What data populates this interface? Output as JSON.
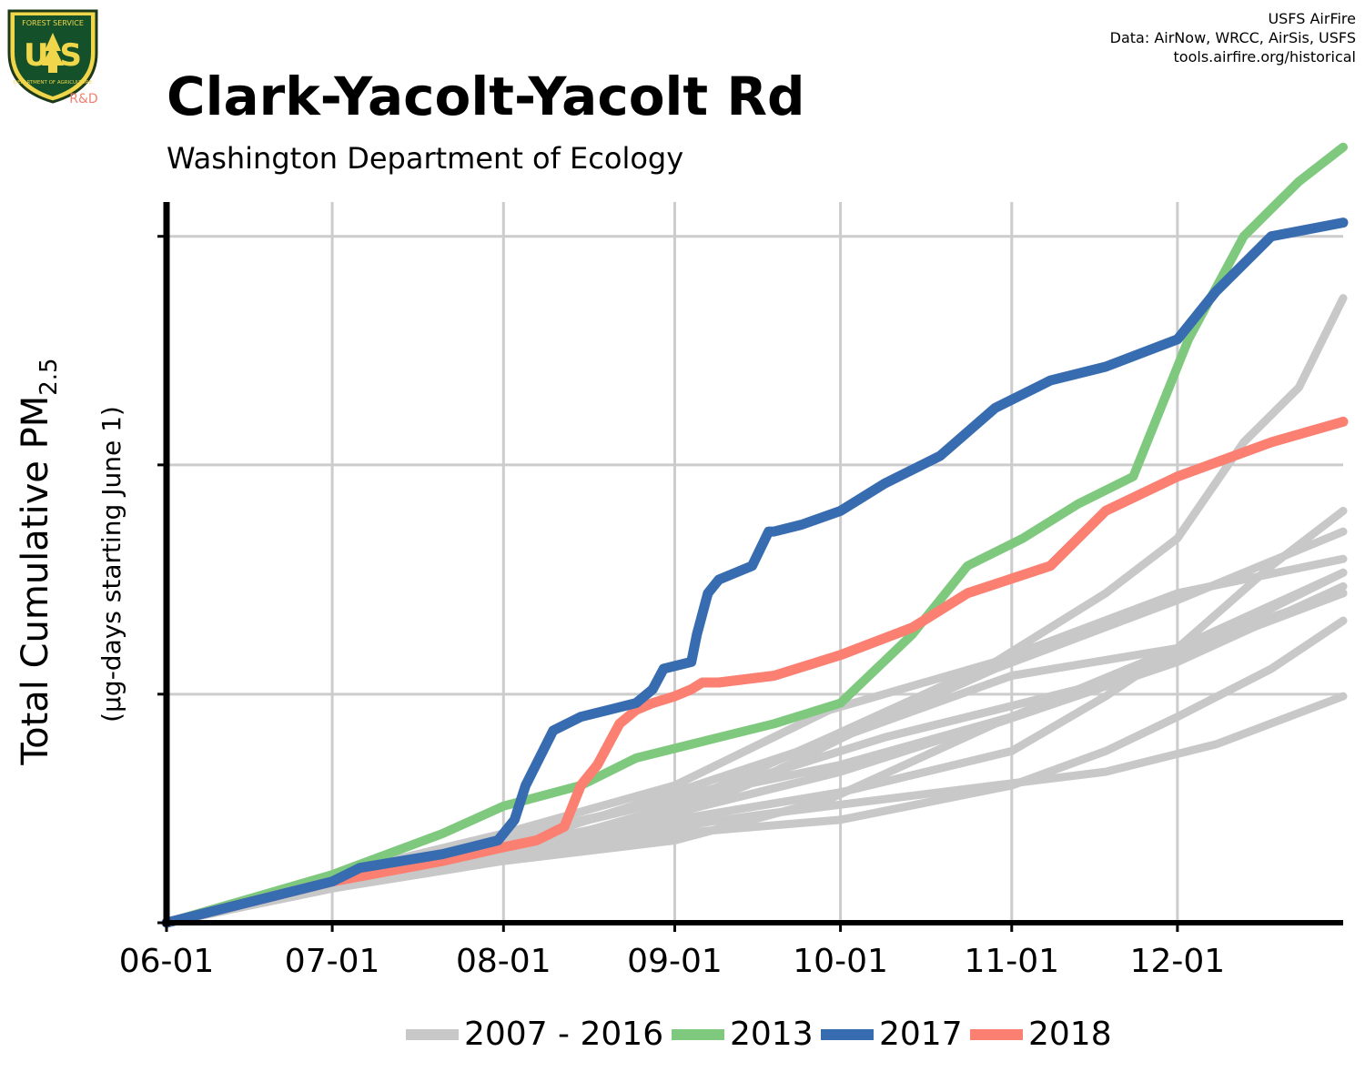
{
  "header": {
    "title": "Clark-Yacolt-Yacolt Rd",
    "subtitle": "Washington Department of Ecology",
    "credits": [
      "USFS AirFire",
      "Data: AirNow, WRCC, AirSis, USFS",
      "tools.airfire.org/historical"
    ]
  },
  "logo": {
    "top_text": "FOREST SERVICE",
    "letters": "U S",
    "bottom_text": "DEPARTMENT OF AGRICULTURE",
    "tag": "R&D"
  },
  "colors": {
    "historical": "#c8c8c8",
    "y2013": "#7fc97f",
    "y2017": "#386cb0",
    "y2018": "#fb8072",
    "grid": "#cccccc",
    "axis": "#000000"
  },
  "chart_data": {
    "type": "line",
    "title": "Clark-Yacolt-Yacolt Rd",
    "subtitle": "Washington Department of Ecology",
    "ylabel": "Total Cumulative PM",
    "ylabel_sub": "2.5",
    "ylabel_note": "(µg-days starting June 1)",
    "x_ticks": [
      "06-01",
      "07-01",
      "08-01",
      "09-01",
      "10-01",
      "11-01",
      "12-01"
    ],
    "x_tick_days": [
      0,
      30,
      61,
      92,
      122,
      153,
      183
    ],
    "xlim": [
      0,
      213
    ],
    "ylim": [
      0,
      1.05
    ],
    "y_ticks": [
      0,
      0.333,
      0.667,
      1.0
    ],
    "y_tick_labels_shown": false,
    "grid": true,
    "legend_position": "bottom",
    "legend": [
      "2007 - 2016",
      "2013",
      "2017",
      "2018"
    ],
    "series": [
      {
        "group": "historical",
        "x": [
          0,
          30,
          50,
          70,
          92,
          110,
          130,
          150,
          170,
          190,
          213
        ],
        "y": [
          0,
          0.06,
          0.09,
          0.11,
          0.14,
          0.16,
          0.18,
          0.2,
          0.22,
          0.26,
          0.33
        ]
      },
      {
        "group": "historical",
        "x": [
          0,
          30,
          50,
          70,
          92,
          110,
          130,
          150,
          170,
          190,
          213
        ],
        "y": [
          0,
          0.06,
          0.1,
          0.14,
          0.18,
          0.22,
          0.27,
          0.31,
          0.35,
          0.41,
          0.48
        ]
      },
      {
        "group": "historical",
        "x": [
          0,
          30,
          61,
          92,
          122,
          153,
          170,
          183,
          200,
          213
        ],
        "y": [
          0,
          0.05,
          0.1,
          0.13,
          0.15,
          0.2,
          0.25,
          0.3,
          0.37,
          0.44
        ]
      },
      {
        "group": "historical",
        "x": [
          0,
          30,
          61,
          92,
          120,
          150,
          183,
          213
        ],
        "y": [
          0,
          0.07,
          0.13,
          0.2,
          0.31,
          0.38,
          0.48,
          0.53
        ]
      },
      {
        "group": "historical",
        "x": [
          0,
          30,
          61,
          92,
          105,
          125,
          150,
          183,
          213
        ],
        "y": [
          0,
          0.06,
          0.1,
          0.16,
          0.2,
          0.28,
          0.37,
          0.47,
          0.57
        ]
      },
      {
        "group": "historical",
        "x": [
          0,
          30,
          61,
          92,
          122,
          153,
          183,
          213
        ],
        "y": [
          0,
          0.06,
          0.12,
          0.18,
          0.23,
          0.3,
          0.39,
          0.51
        ]
      },
      {
        "group": "historical",
        "x": [
          0,
          30,
          61,
          92,
          120,
          150,
          183,
          213
        ],
        "y": [
          0,
          0.05,
          0.09,
          0.12,
          0.18,
          0.29,
          0.38,
          0.49
        ]
      },
      {
        "group": "historical",
        "x": [
          0,
          30,
          61,
          92,
          122,
          153,
          183,
          213
        ],
        "y": [
          0,
          0.06,
          0.11,
          0.16,
          0.22,
          0.3,
          0.4,
          0.48
        ]
      },
      {
        "group": "historical",
        "x": [
          0,
          30,
          61,
          92,
          122,
          153,
          183,
          213
        ],
        "y": [
          0,
          0.06,
          0.11,
          0.19,
          0.27,
          0.36,
          0.4,
          0.51
        ]
      },
      {
        "group": "historical",
        "x": [
          0,
          30,
          61,
          92,
          122,
          153,
          170,
          183,
          200,
          213
        ],
        "y": [
          0,
          0.06,
          0.1,
          0.15,
          0.19,
          0.25,
          0.33,
          0.4,
          0.52,
          0.6
        ]
      },
      {
        "group": "historical",
        "x": [
          0,
          30,
          61,
          92,
          120,
          150,
          170,
          183,
          195,
          205,
          213
        ],
        "y": [
          0,
          0.06,
          0.1,
          0.17,
          0.27,
          0.38,
          0.48,
          0.56,
          0.7,
          0.78,
          0.91
        ]
      },
      {
        "group": "y2013",
        "name": "2013",
        "x": [
          0,
          30,
          50,
          61,
          75,
          85,
          100,
          110,
          122,
          135,
          145,
          155,
          165,
          175,
          185,
          195,
          205,
          213
        ],
        "y": [
          0,
          0.07,
          0.13,
          0.17,
          0.2,
          0.24,
          0.27,
          0.29,
          0.32,
          0.42,
          0.52,
          0.56,
          0.61,
          0.65,
          0.85,
          1.0,
          1.08,
          1.13
        ]
      },
      {
        "group": "y2017",
        "name": "2017",
        "x": [
          0,
          30,
          35,
          50,
          60,
          63,
          65,
          70,
          75,
          80,
          85,
          88,
          90,
          95,
          96,
          98,
          100,
          106,
          109,
          110,
          115,
          122,
          130,
          140,
          150,
          160,
          170,
          183,
          190,
          200,
          213
        ],
        "y": [
          0,
          0.06,
          0.08,
          0.1,
          0.12,
          0.15,
          0.2,
          0.28,
          0.3,
          0.31,
          0.32,
          0.34,
          0.37,
          0.38,
          0.42,
          0.48,
          0.5,
          0.52,
          0.57,
          0.57,
          0.58,
          0.6,
          0.64,
          0.68,
          0.75,
          0.79,
          0.81,
          0.85,
          0.92,
          1.0,
          1.02
        ]
      },
      {
        "group": "y2018",
        "name": "2018",
        "x": [
          0,
          30,
          50,
          61,
          67,
          72,
          75,
          78,
          82,
          85,
          88,
          92,
          95,
          97,
          100,
          110,
          122,
          135,
          145,
          160,
          170,
          183,
          200,
          213
        ],
        "y": [
          0,
          0.06,
          0.09,
          0.11,
          0.12,
          0.14,
          0.2,
          0.23,
          0.29,
          0.31,
          0.32,
          0.33,
          0.34,
          0.35,
          0.35,
          0.36,
          0.39,
          0.43,
          0.48,
          0.52,
          0.6,
          0.65,
          0.7,
          0.73
        ]
      }
    ]
  },
  "legend_labels": [
    "2007 - 2016",
    "2013",
    "2017",
    "2018"
  ]
}
